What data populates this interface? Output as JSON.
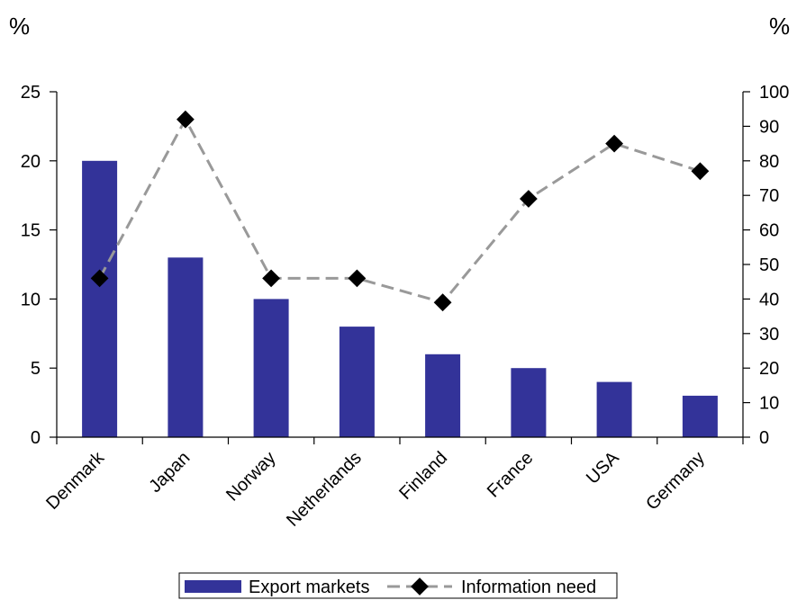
{
  "chart_data": {
    "type": "bar",
    "categories": [
      "Denmark",
      "Japan",
      "Norway",
      "Netherlands",
      "Finland",
      "France",
      "USA",
      "Germany"
    ],
    "series": [
      {
        "name": "Export markets",
        "type": "bar",
        "axis": "left",
        "color": "#333399",
        "values": [
          20,
          13,
          10,
          8,
          6,
          5,
          4,
          3
        ]
      },
      {
        "name": "Information need",
        "type": "line",
        "axis": "right",
        "color": "#999999",
        "marker_color": "#000000",
        "line_style": "dashed",
        "marker": "diamond",
        "values": [
          46,
          92,
          46,
          46,
          39,
          69,
          85,
          77
        ]
      }
    ],
    "left_axis": {
      "unit": "%",
      "ylim": [
        0,
        25
      ],
      "ticks": [
        0,
        5,
        10,
        15,
        20,
        25
      ]
    },
    "right_axis": {
      "unit": "%",
      "ylim": [
        0,
        100
      ],
      "ticks": [
        0,
        10,
        20,
        30,
        40,
        50,
        60,
        70,
        80,
        90,
        100
      ]
    },
    "legend": {
      "position": "bottom",
      "entries": [
        "Export markets",
        "Information need"
      ]
    },
    "grid": false
  }
}
